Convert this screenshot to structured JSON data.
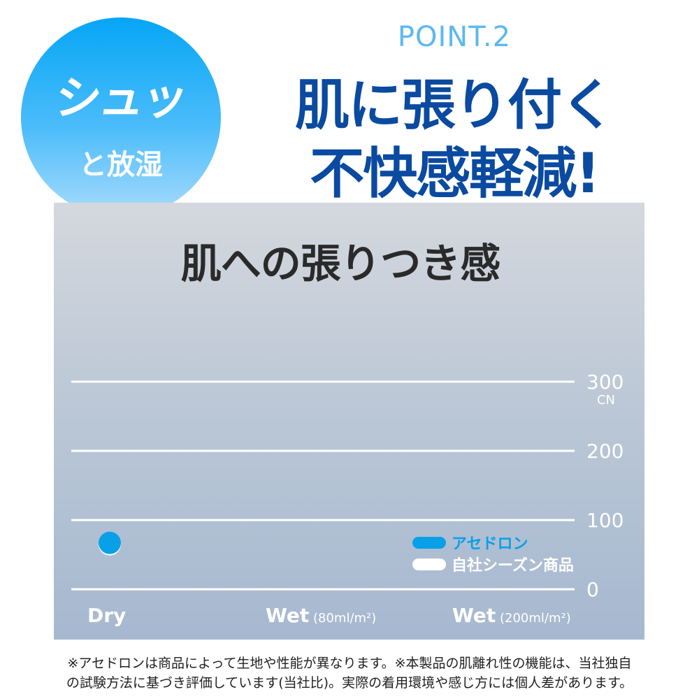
{
  "badge": {
    "main": "シュッ",
    "sub": "と放湿"
  },
  "header": {
    "point": "POINT.2",
    "line1": "肌に張り付く",
    "line2": "不快感軽減!"
  },
  "chart_data": {
    "type": "scatter",
    "title": "肌への張りつき感",
    "categories": [
      "Dry",
      "Wet",
      "Wet"
    ],
    "category_notes": [
      "",
      "(80ml/m²)",
      "(200ml/m²)"
    ],
    "yunit": "CN",
    "ylim": [
      0,
      300
    ],
    "yticks": [
      "0",
      "100",
      "200",
      "300"
    ],
    "grid": true,
    "legend_position": "bottom-right",
    "series": [
      {
        "name": "アセドロン",
        "color": "#0aa0e8",
        "values": [
          67,
          null,
          null
        ]
      },
      {
        "name": "自社シーズン商品",
        "color": "#ffffff",
        "values": [
          65,
          null,
          null
        ]
      }
    ]
  },
  "footnote": {
    "line1": "※アセドロンは商品によって生地や性能が異なります。※本製品の肌離れ性の機能は、当社独自",
    "line2": "の試験方法に基づき評価しています(当社比)。実際の着用環境や感じ方には個人差があります。"
  }
}
